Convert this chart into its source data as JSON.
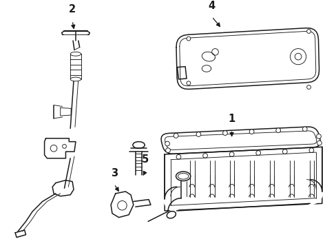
{
  "background_color": "#ffffff",
  "line_color": "#1a1a1a",
  "lw": 1.1,
  "tlw": 0.65,
  "label_fontsize": 10.5
}
